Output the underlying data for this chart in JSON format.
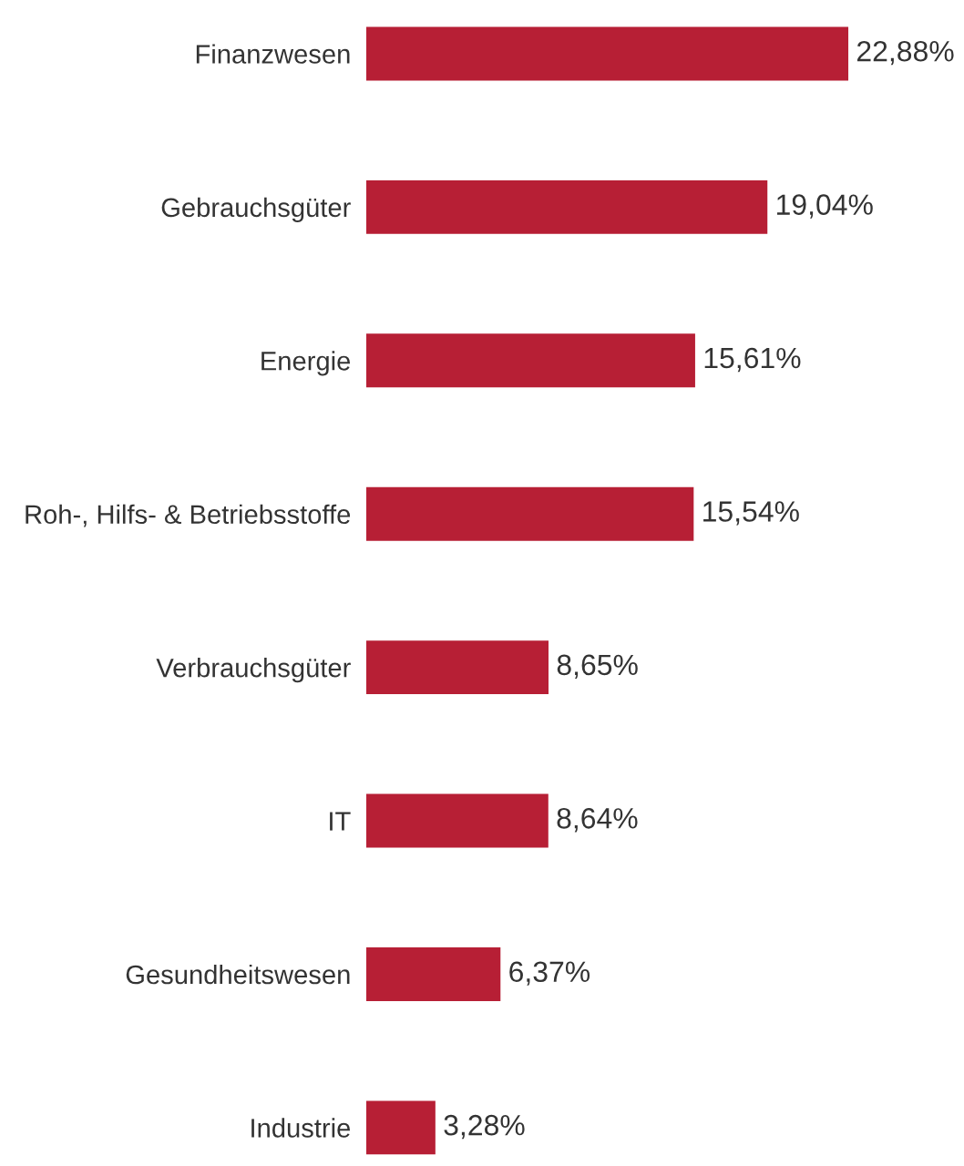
{
  "chart_data": {
    "type": "bar",
    "orientation": "horizontal",
    "categories": [
      "Finanzwesen",
      "Gebrauchsgüter",
      "Energie",
      "Roh-, Hilfs- & Betriebsstoffe",
      "Verbrauchsgüter",
      "IT",
      "Gesundheitswesen",
      "Industrie"
    ],
    "values": [
      22.88,
      19.04,
      15.61,
      15.54,
      8.65,
      8.64,
      6.37,
      3.28
    ],
    "value_labels": [
      "22,88%",
      "19,04%",
      "15,61%",
      "15,54%",
      "8,65%",
      "8,64%",
      "6,37%",
      "3,28%"
    ],
    "color": "#b71f35",
    "grid": false,
    "legend": false
  }
}
